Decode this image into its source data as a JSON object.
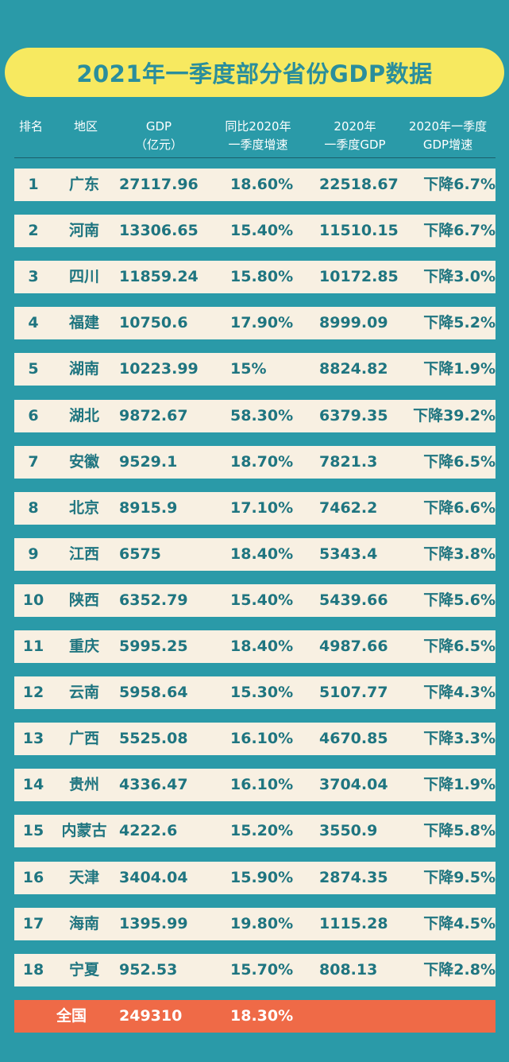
{
  "title": "2021年一季度部分省份GDP数据",
  "header": {
    "rank": "排名",
    "region": "地区",
    "gdp_line1": "GDP",
    "gdp_line2": "（亿元）",
    "yoy_line1": "同比2020年",
    "yoy_line2": "一季度增速",
    "prev_line1": "2020年",
    "prev_line2": "一季度GDP",
    "prevg_line1": "2020年一季度",
    "prevg_line2": "GDP增速"
  },
  "rows": [
    {
      "rank": "1",
      "region": "广东",
      "gdp": "27117.96",
      "yoy": "18.60%",
      "prev_gdp": "22518.67",
      "prev_growth": "下降6.7%"
    },
    {
      "rank": "2",
      "region": "河南",
      "gdp": "13306.65",
      "yoy": "15.40%",
      "prev_gdp": "11510.15",
      "prev_growth": "下降6.7%"
    },
    {
      "rank": "3",
      "region": "四川",
      "gdp": "11859.24",
      "yoy": "15.80%",
      "prev_gdp": "10172.85",
      "prev_growth": "下降3.0%"
    },
    {
      "rank": "4",
      "region": "福建",
      "gdp": "10750.6",
      "yoy": "17.90%",
      "prev_gdp": "8999.09",
      "prev_growth": "下降5.2%"
    },
    {
      "rank": "5",
      "region": "湖南",
      "gdp": "10223.99",
      "yoy": "15%",
      "prev_gdp": "8824.82",
      "prev_growth": "下降1.9%"
    },
    {
      "rank": "6",
      "region": "湖北",
      "gdp": "9872.67",
      "yoy": "58.30%",
      "prev_gdp": "6379.35",
      "prev_growth": "下降39.2%"
    },
    {
      "rank": "7",
      "region": "安徽",
      "gdp": "9529.1",
      "yoy": "18.70%",
      "prev_gdp": "7821.3",
      "prev_growth": "下降6.5%"
    },
    {
      "rank": "8",
      "region": "北京",
      "gdp": "8915.9",
      "yoy": "17.10%",
      "prev_gdp": "7462.2",
      "prev_growth": "下降6.6%"
    },
    {
      "rank": "9",
      "region": "江西",
      "gdp": "6575",
      "yoy": "18.40%",
      "prev_gdp": "5343.4",
      "prev_growth": "下降3.8%"
    },
    {
      "rank": "10",
      "region": "陕西",
      "gdp": "6352.79",
      "yoy": "15.40%",
      "prev_gdp": "5439.66",
      "prev_growth": "下降5.6%"
    },
    {
      "rank": "11",
      "region": "重庆",
      "gdp": "5995.25",
      "yoy": "18.40%",
      "prev_gdp": "4987.66",
      "prev_growth": "下降6.5%"
    },
    {
      "rank": "12",
      "region": "云南",
      "gdp": "5958.64",
      "yoy": "15.30%",
      "prev_gdp": "5107.77",
      "prev_growth": "下降4.3%"
    },
    {
      "rank": "13",
      "region": "广西",
      "gdp": "5525.08",
      "yoy": "16.10%",
      "prev_gdp": "4670.85",
      "prev_growth": "下降3.3%"
    },
    {
      "rank": "14",
      "region": "贵州",
      "gdp": "4336.47",
      "yoy": "16.10%",
      "prev_gdp": "3704.04",
      "prev_growth": "下降1.9%"
    },
    {
      "rank": "15",
      "region": "内蒙古",
      "gdp": "4222.6",
      "yoy": "15.20%",
      "prev_gdp": "3550.9",
      "prev_growth": "下降5.8%"
    },
    {
      "rank": "16",
      "region": "天津",
      "gdp": "3404.04",
      "yoy": "15.90%",
      "prev_gdp": "2874.35",
      "prev_growth": "下降9.5%"
    },
    {
      "rank": "17",
      "region": "海南",
      "gdp": "1395.99",
      "yoy": "19.80%",
      "prev_gdp": "1115.28",
      "prev_growth": "下降4.5%"
    },
    {
      "rank": "18",
      "region": "宁夏",
      "gdp": "952.53",
      "yoy": "15.70%",
      "prev_gdp": "808.13",
      "prev_growth": "下降2.8%"
    }
  ],
  "total": {
    "region": "全国",
    "gdp": "249310",
    "yoy": "18.30%"
  },
  "colors": {
    "background": "#2a9aa8",
    "title_pill": "#f7e960",
    "title_text": "#2a8e9c",
    "row_bg": "#f8f0e2",
    "row_text": "#1f7580",
    "total_bg": "#ef6a47"
  }
}
